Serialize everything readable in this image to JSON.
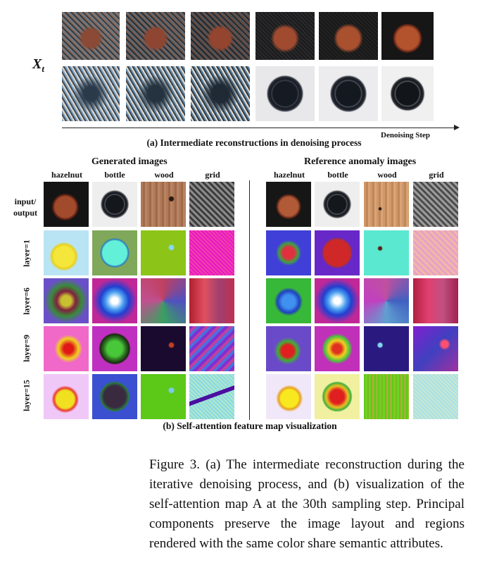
{
  "top": {
    "xt_symbol": "X",
    "xt_subscript": "t",
    "axis_label": "Denoising Step",
    "caption": "(a) Intermediate reconstructions in denoising process"
  },
  "grid": {
    "generated_header": "Generated images",
    "reference_header": "Reference anomaly images",
    "columns": [
      "hazelnut",
      "bottle",
      "wood",
      "grid"
    ],
    "row_labels": [
      "input/\noutput",
      "layer=1",
      "layer=6",
      "layer=9",
      "layer=15"
    ],
    "caption": "(b) Self-attention feature map visualization"
  },
  "figure_caption": "Figure 3.  (a) The intermediate reconstruction during the iterative denoising process, and (b) visualization of the self-attention map A at the 30th sampling step.  Principal components preserve the image layout and regions rendered with the same color share semantic attributes."
}
